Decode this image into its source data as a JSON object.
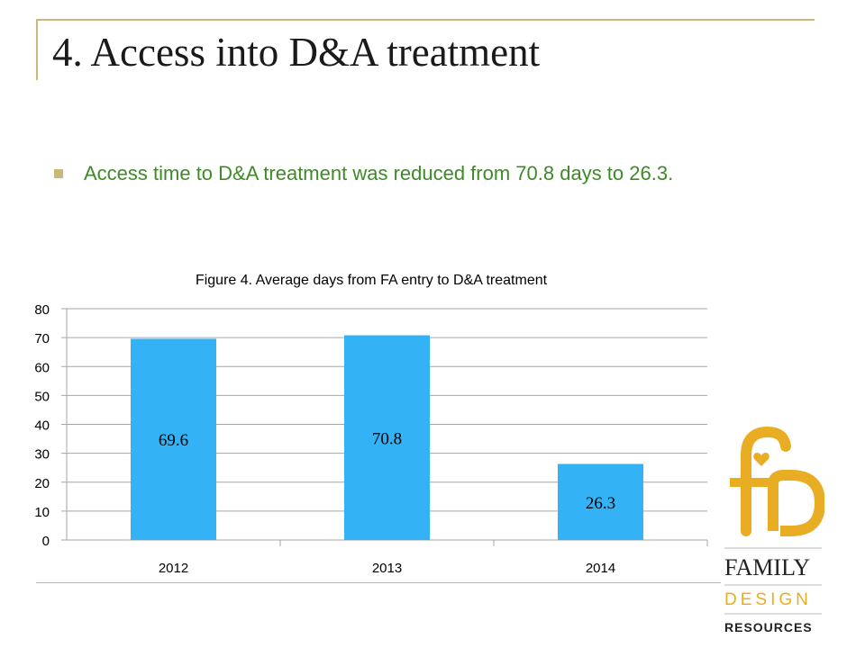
{
  "slide": {
    "title": "4. Access into D&A treatment",
    "bullet": "Access time to D&A treatment was reduced from 70.8 days to 26.3."
  },
  "chart_data": {
    "type": "bar",
    "title": "Figure 4. Average days from FA entry to D&A treatment",
    "categories": [
      "2012",
      "2013",
      "2014"
    ],
    "values": [
      69.6,
      70.8,
      26.3
    ],
    "data_labels": [
      "69.6",
      "70.8",
      "26.3"
    ],
    "xlabel": "",
    "ylabel": "",
    "ylim": [
      0,
      80
    ],
    "yticks": [
      0,
      10,
      20,
      30,
      40,
      50,
      60,
      70,
      80
    ],
    "grid": true,
    "legend": "none",
    "bar_color": "#33b2f5"
  },
  "logo": {
    "line1": "FAMILY",
    "line2": "DESIGN",
    "line3": "RESOURCES",
    "gold": "#e8ad22",
    "dark": "#222222"
  }
}
